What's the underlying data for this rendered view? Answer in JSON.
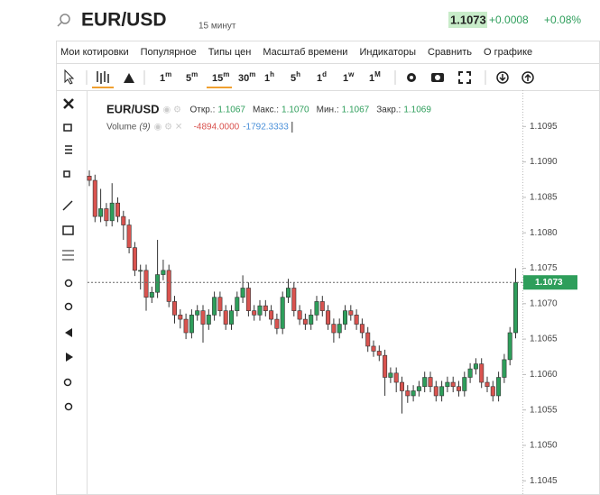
{
  "header": {
    "symbol": "EUR/USD",
    "timeframe": "15 минут",
    "price": "1.1073",
    "change": "+0.0008",
    "change_percent": "+0.08%"
  },
  "menu": [
    "Мои котировки",
    "Популярное",
    "Типы цен",
    "Масштаб времени",
    "Индикаторы",
    "Сравнить",
    "О графике"
  ],
  "timeframes": [
    {
      "n": "1",
      "u": "m"
    },
    {
      "n": "5",
      "u": "m"
    },
    {
      "n": "15",
      "u": "m"
    },
    {
      "n": "30",
      "u": "m"
    },
    {
      "n": "1",
      "u": "h"
    },
    {
      "n": "5",
      "u": "h"
    },
    {
      "n": "1",
      "u": "d"
    },
    {
      "n": "1",
      "u": "w"
    },
    {
      "n": "1",
      "u": "M"
    }
  ],
  "legend": {
    "symbol": "EUR/USD",
    "ohlc": [
      {
        "label": "Откр.:",
        "value": "1.1067"
      },
      {
        "label": "Макс.:",
        "value": "1.1070"
      },
      {
        "label": "Мин.:",
        "value": "1.1067"
      },
      {
        "label": "Закр.:",
        "value": "1.1069"
      }
    ],
    "volume_label": "Volume",
    "volume_period": "(9)",
    "volume_values": [
      "-4894.0000",
      "-1792.3333"
    ]
  },
  "chart_data": {
    "type": "candlestick",
    "up_color": "#2e9e5b",
    "down_color": "#d9534f",
    "ylim": [
      1.1043,
      1.11
    ],
    "yticks": [
      {
        "value": 1.1045,
        "label": "1.1045"
      },
      {
        "value": 1.105,
        "label": "1.1050"
      },
      {
        "value": 1.1055,
        "label": "1.1055"
      },
      {
        "value": 1.106,
        "label": "1.1060"
      },
      {
        "value": 1.1065,
        "label": "1.1065"
      },
      {
        "value": 1.107,
        "label": "1.1070"
      },
      {
        "value": 1.1075,
        "label": "1.1075"
      },
      {
        "value": 1.108,
        "label": "1.1080"
      },
      {
        "value": 1.1085,
        "label": "1.1085"
      },
      {
        "value": 1.109,
        "label": "1.1090"
      },
      {
        "value": 1.1095,
        "label": "1.1095"
      }
    ],
    "current_price": 1.1073,
    "open": [
      1.1088,
      1.10874,
      1.10823,
      1.10834,
      1.10817,
      1.10842,
      1.10823,
      1.10811,
      1.10779,
      1.10747,
      1.10747,
      1.10709,
      1.10716,
      1.10741,
      1.10747,
      1.10703,
      1.10684,
      1.10678,
      1.10659,
      1.10684,
      1.1069,
      1.10671,
      1.10684,
      1.10709,
      1.1069,
      1.10671,
      1.1069,
      1.10709,
      1.10722,
      1.1069,
      1.10684,
      1.10697,
      1.1069,
      1.10678,
      1.10665,
      1.10709,
      1.10722,
      1.1069,
      1.10678,
      1.10671,
      1.10684,
      1.10703,
      1.1069,
      1.10671,
      1.10659,
      1.10671,
      1.1069,
      1.10684,
      1.10671,
      1.10659,
      1.1064,
      1.10633,
      1.10627,
      1.10596,
      1.10602,
      1.10589,
      1.10577,
      1.1057,
      1.10577,
      1.10583,
      1.10596,
      1.10583,
      1.1057,
      1.10583,
      1.10589,
      1.10583,
      1.10577,
      1.10596,
      1.10608,
      1.10615,
      1.10589,
      1.10583,
      1.1057,
      1.10596,
      1.10621,
      1.10659
    ],
    "high": [
      1.10888,
      1.10882,
      1.10862,
      1.10842,
      1.1087,
      1.1085,
      1.10831,
      1.10819,
      1.10787,
      1.10755,
      1.10755,
      1.10724,
      1.1079,
      1.10762,
      1.10755,
      1.10711,
      1.10692,
      1.10686,
      1.10692,
      1.10698,
      1.10698,
      1.10692,
      1.10717,
      1.10717,
      1.10698,
      1.10698,
      1.10717,
      1.1074,
      1.1073,
      1.10698,
      1.10705,
      1.10705,
      1.10698,
      1.10686,
      1.10717,
      1.10735,
      1.1073,
      1.10698,
      1.10686,
      1.10692,
      1.10711,
      1.10711,
      1.10698,
      1.10679,
      1.10679,
      1.10698,
      1.10698,
      1.10692,
      1.10679,
      1.10667,
      1.10648,
      1.10641,
      1.10635,
      1.1061,
      1.1061,
      1.10597,
      1.10585,
      1.10585,
      1.10591,
      1.10604,
      1.10604,
      1.10591,
      1.10591,
      1.10597,
      1.10597,
      1.10591,
      1.10604,
      1.10616,
      1.10623,
      1.10623,
      1.10597,
      1.10591,
      1.10604,
      1.10629,
      1.10667,
      1.1075
    ],
    "low": [
      1.10866,
      1.10815,
      1.10815,
      1.10809,
      1.10809,
      1.10815,
      1.1079,
      1.10771,
      1.10739,
      1.1072,
      1.1069,
      1.10701,
      1.10708,
      1.10733,
      1.10695,
      1.10672,
      1.10665,
      1.1065,
      1.10651,
      1.10676,
      1.10645,
      1.10663,
      1.10676,
      1.10682,
      1.10663,
      1.10663,
      1.10682,
      1.10701,
      1.10682,
      1.10676,
      1.10676,
      1.10682,
      1.1067,
      1.10657,
      1.10657,
      1.10701,
      1.10682,
      1.1067,
      1.10663,
      1.10663,
      1.10676,
      1.10682,
      1.10663,
      1.10645,
      1.10651,
      1.10663,
      1.10676,
      1.10663,
      1.10651,
      1.10632,
      1.10625,
      1.10619,
      1.1057,
      1.10588,
      1.10575,
      1.10545,
      1.1056,
      1.10562,
      1.10569,
      1.10575,
      1.10575,
      1.10562,
      1.10562,
      1.10575,
      1.10575,
      1.10569,
      1.10569,
      1.10588,
      1.106,
      1.10581,
      1.10575,
      1.10562,
      1.10562,
      1.10588,
      1.10613,
      1.10651
    ],
    "close": [
      1.10874,
      1.10823,
      1.10834,
      1.10817,
      1.10842,
      1.10823,
      1.10811,
      1.10779,
      1.10747,
      1.10747,
      1.10709,
      1.10716,
      1.10741,
      1.10747,
      1.10703,
      1.10684,
      1.10678,
      1.10659,
      1.10684,
      1.1069,
      1.10671,
      1.10684,
      1.10709,
      1.1069,
      1.10671,
      1.1069,
      1.10709,
      1.10722,
      1.1069,
      1.10684,
      1.10697,
      1.1069,
      1.10678,
      1.10665,
      1.10709,
      1.10722,
      1.1069,
      1.10678,
      1.10671,
      1.10684,
      1.10703,
      1.1069,
      1.10671,
      1.10659,
      1.10671,
      1.1069,
      1.10684,
      1.10671,
      1.10659,
      1.1064,
      1.10633,
      1.10627,
      1.10596,
      1.10602,
      1.10589,
      1.10577,
      1.1057,
      1.10577,
      1.10583,
      1.10596,
      1.10583,
      1.1057,
      1.10583,
      1.10589,
      1.10583,
      1.10577,
      1.10596,
      1.10608,
      1.10615,
      1.10589,
      1.10583,
      1.1057,
      1.10596,
      1.10621,
      1.10659,
      1.1073
    ]
  }
}
